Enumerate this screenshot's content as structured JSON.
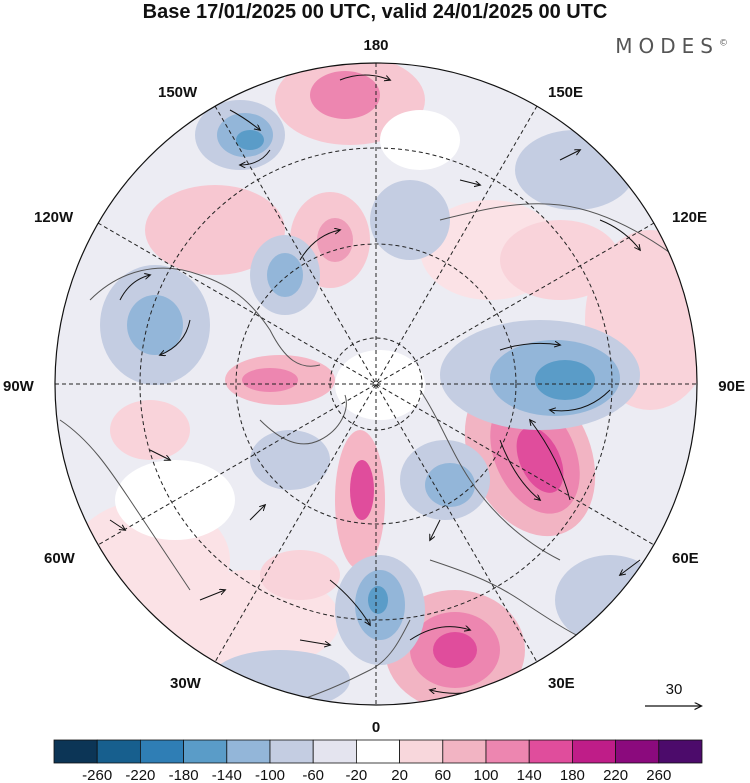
{
  "title": "Base 17/01/2025 00 UTC, valid 24/01/2025 00 UTC",
  "brand": "MODES",
  "brand_mark": "©",
  "longitude_labels": {
    "top": "180",
    "bottom": "0",
    "left": "90W",
    "right": "90E",
    "upper_left": "150W",
    "upper_right": "150E",
    "mid_upper_left": "120W",
    "mid_upper_right": "120E",
    "mid_lower_left": "60W",
    "mid_lower_right": "60E",
    "lower_left": "30W",
    "lower_right": "30E"
  },
  "vector_reference": {
    "label": "30"
  },
  "colorbar": {
    "ticks": [
      "-260",
      "-220",
      "-180",
      "-140",
      "-100",
      "-60",
      "-20",
      "20",
      "60",
      "100",
      "140",
      "180",
      "220",
      "260"
    ],
    "colors": [
      "#0c3556",
      "#175f8e",
      "#2f7eb5",
      "#5a9cc8",
      "#93b6d9",
      "#c4cde2",
      "#e4e4ef",
      "#ffffff",
      "#f8d7dc",
      "#f2b4c3",
      "#ed86b0",
      "#e04d9c",
      "#bf1d88",
      "#8b0a7d",
      "#4c0b6b"
    ]
  },
  "palette": {
    "land_outline": "#555555",
    "graticule": "#222222",
    "arrows": "#111111"
  }
}
